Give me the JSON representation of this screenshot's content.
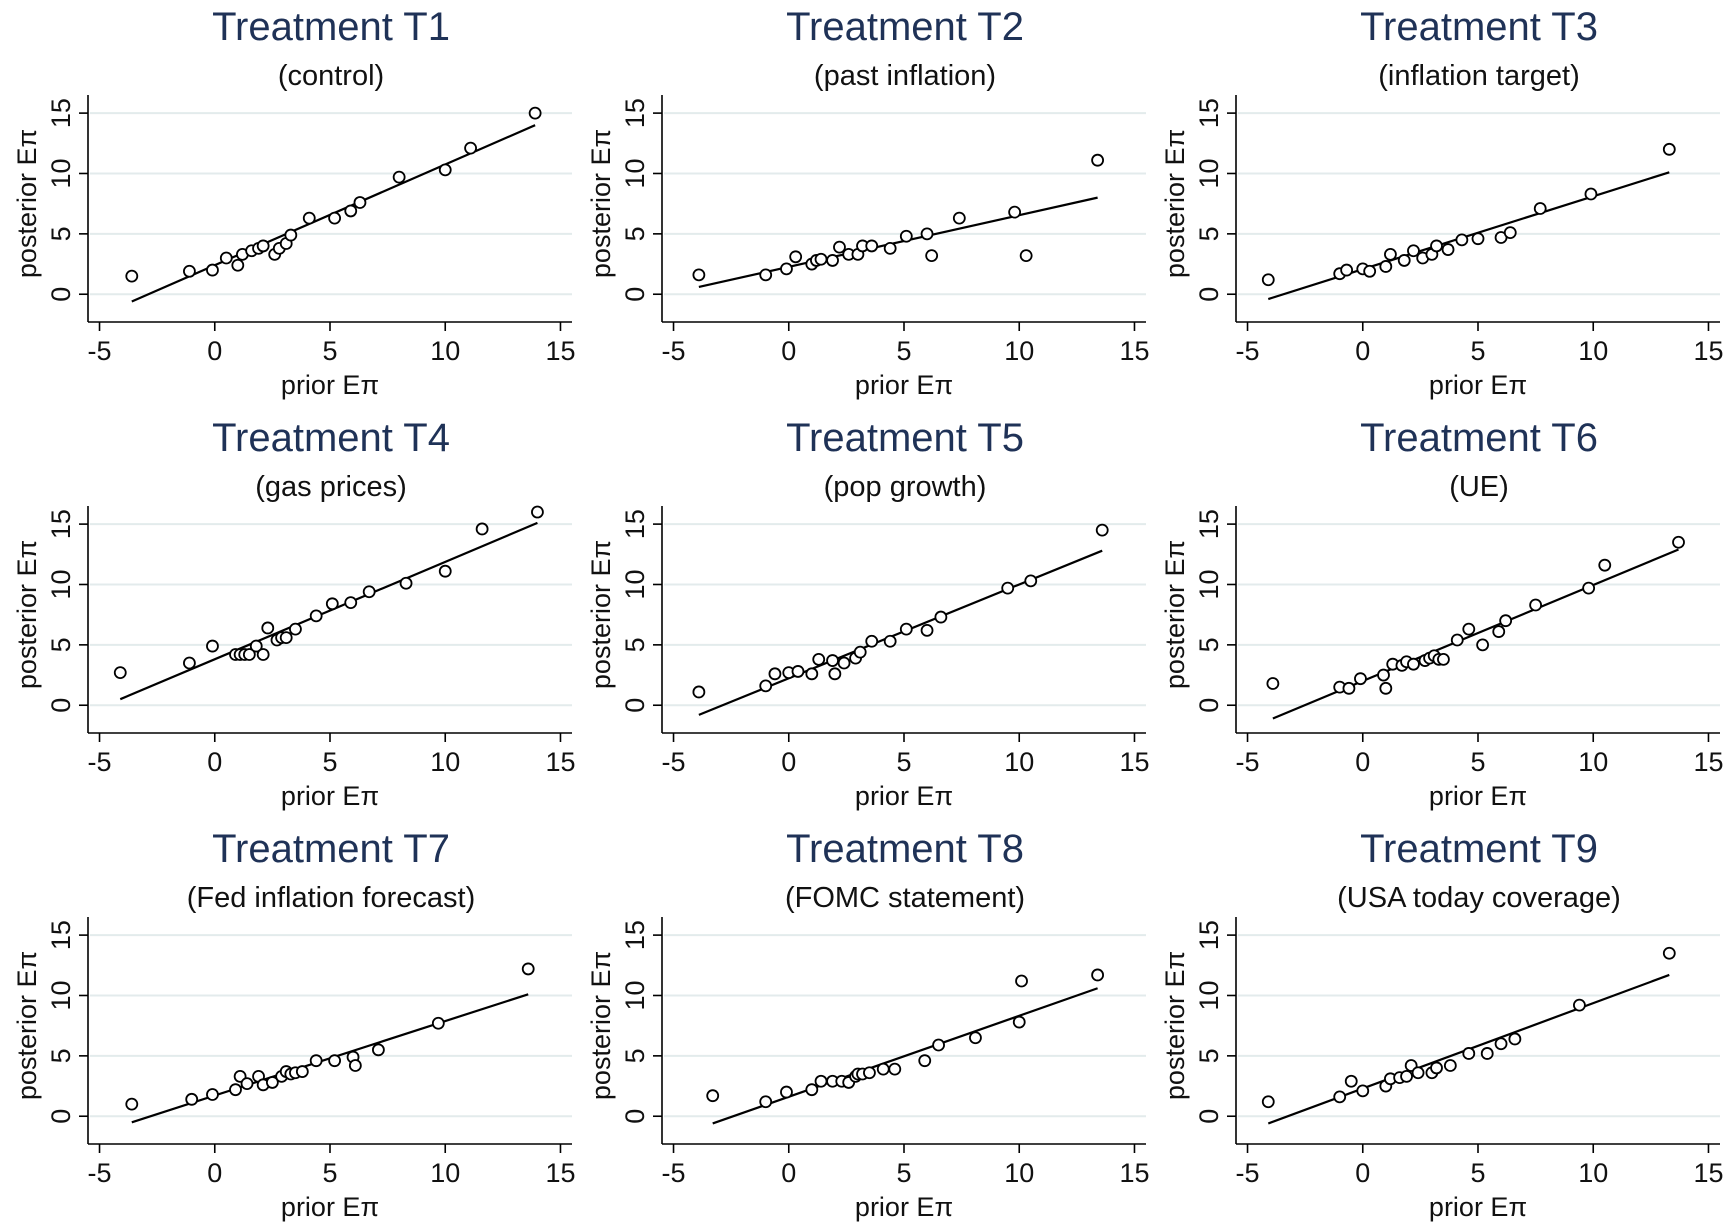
{
  "figure": {
    "xlabel": "prior Eπ",
    "ylabel": "posterior Eπ"
  },
  "chart_data": [
    {
      "type": "scatter",
      "title": "Treatment T1",
      "subtitle": "(control)",
      "xlabel": "prior Eπ",
      "ylabel": "posterior Eπ",
      "xlim": [
        -5.5,
        15.5
      ],
      "ylim": [
        -2.3,
        16.5
      ],
      "xticks": [
        -5,
        0,
        5,
        10,
        15
      ],
      "yticks": [
        0,
        5,
        10,
        15
      ],
      "grid": true,
      "points": [
        [
          -3.6,
          1.5
        ],
        [
          -1.1,
          1.9
        ],
        [
          -0.1,
          2.0
        ],
        [
          0.5,
          3.0
        ],
        [
          1.0,
          2.4
        ],
        [
          1.2,
          3.3
        ],
        [
          1.6,
          3.6
        ],
        [
          1.9,
          3.8
        ],
        [
          2.1,
          4.0
        ],
        [
          2.6,
          3.3
        ],
        [
          2.8,
          3.8
        ],
        [
          3.1,
          4.2
        ],
        [
          3.3,
          4.9
        ],
        [
          4.1,
          6.3
        ],
        [
          5.2,
          6.3
        ],
        [
          5.9,
          6.9
        ],
        [
          6.3,
          7.6
        ],
        [
          8.0,
          9.7
        ],
        [
          10.0,
          10.3
        ],
        [
          11.1,
          12.1
        ],
        [
          13.9,
          15.0
        ]
      ],
      "fit": {
        "x": [
          -3.6,
          13.9
        ],
        "y": [
          -0.6,
          14.0
        ]
      }
    },
    {
      "type": "scatter",
      "title": "Treatment T2",
      "subtitle": "(past inflation)",
      "xlabel": "prior Eπ",
      "ylabel": "posterior Eπ",
      "xlim": [
        -5.5,
        15.5
      ],
      "ylim": [
        -2.3,
        16.5
      ],
      "xticks": [
        -5,
        0,
        5,
        10,
        15
      ],
      "yticks": [
        0,
        5,
        10,
        15
      ],
      "grid": true,
      "points": [
        [
          -3.9,
          1.6
        ],
        [
          -1.0,
          1.6
        ],
        [
          -0.1,
          2.1
        ],
        [
          0.3,
          3.1
        ],
        [
          1.0,
          2.5
        ],
        [
          1.2,
          2.8
        ],
        [
          1.4,
          2.9
        ],
        [
          1.9,
          2.8
        ],
        [
          2.2,
          3.9
        ],
        [
          2.6,
          3.3
        ],
        [
          3.0,
          3.3
        ],
        [
          3.2,
          4.0
        ],
        [
          3.6,
          4.0
        ],
        [
          4.4,
          3.8
        ],
        [
          5.1,
          4.8
        ],
        [
          6.0,
          5.0
        ],
        [
          6.2,
          3.2
        ],
        [
          7.4,
          6.3
        ],
        [
          9.8,
          6.8
        ],
        [
          10.3,
          3.2
        ],
        [
          13.4,
          11.1
        ]
      ],
      "fit": {
        "x": [
          -3.9,
          13.4
        ],
        "y": [
          0.6,
          8.0
        ]
      }
    },
    {
      "type": "scatter",
      "title": "Treatment T3",
      "subtitle": "(inflation target)",
      "xlabel": "prior Eπ",
      "ylabel": "posterior Eπ",
      "xlim": [
        -5.5,
        15.5
      ],
      "ylim": [
        -2.3,
        16.5
      ],
      "xticks": [
        -5,
        0,
        5,
        10,
        15
      ],
      "yticks": [
        0,
        5,
        10,
        15
      ],
      "grid": true,
      "points": [
        [
          -4.1,
          1.2
        ],
        [
          -1.0,
          1.7
        ],
        [
          -0.7,
          2.0
        ],
        [
          0.0,
          2.1
        ],
        [
          0.3,
          1.9
        ],
        [
          1.0,
          2.3
        ],
        [
          1.2,
          3.3
        ],
        [
          1.8,
          2.8
        ],
        [
          2.2,
          3.6
        ],
        [
          2.6,
          3.0
        ],
        [
          3.0,
          3.3
        ],
        [
          3.2,
          4.0
        ],
        [
          3.7,
          3.7
        ],
        [
          4.3,
          4.5
        ],
        [
          5.0,
          4.6
        ],
        [
          6.0,
          4.7
        ],
        [
          6.4,
          5.1
        ],
        [
          7.7,
          7.1
        ],
        [
          9.9,
          8.3
        ],
        [
          13.3,
          12.0
        ]
      ],
      "fit": {
        "x": [
          -4.1,
          13.3
        ],
        "y": [
          -0.4,
          10.1
        ]
      }
    },
    {
      "type": "scatter",
      "title": "Treatment T4",
      "subtitle": "(gas prices)",
      "xlabel": "prior Eπ",
      "ylabel": "posterior Eπ",
      "xlim": [
        -5.5,
        15.5
      ],
      "ylim": [
        -2.3,
        16.5
      ],
      "xticks": [
        -5,
        0,
        5,
        10,
        15
      ],
      "yticks": [
        0,
        5,
        10,
        15
      ],
      "grid": true,
      "points": [
        [
          -4.1,
          2.7
        ],
        [
          -1.1,
          3.5
        ],
        [
          -0.1,
          4.9
        ],
        [
          0.9,
          4.2
        ],
        [
          1.1,
          4.2
        ],
        [
          1.3,
          4.2
        ],
        [
          1.5,
          4.2
        ],
        [
          1.8,
          4.9
        ],
        [
          2.1,
          4.2
        ],
        [
          2.3,
          6.4
        ],
        [
          2.7,
          5.4
        ],
        [
          2.9,
          5.6
        ],
        [
          3.1,
          5.6
        ],
        [
          3.5,
          6.3
        ],
        [
          4.4,
          7.4
        ],
        [
          5.1,
          8.4
        ],
        [
          5.9,
          8.5
        ],
        [
          6.7,
          9.4
        ],
        [
          8.3,
          10.1
        ],
        [
          10.0,
          11.1
        ],
        [
          11.6,
          14.6
        ],
        [
          14.0,
          16.0
        ]
      ],
      "fit": {
        "x": [
          -4.1,
          14.0
        ],
        "y": [
          0.5,
          15.1
        ]
      }
    },
    {
      "type": "scatter",
      "title": "Treatment T5",
      "subtitle": "(pop growth)",
      "xlabel": "prior Eπ",
      "ylabel": "posterior Eπ",
      "xlim": [
        -5.5,
        15.5
      ],
      "ylim": [
        -2.3,
        16.5
      ],
      "xticks": [
        -5,
        0,
        5,
        10,
        15
      ],
      "yticks": [
        0,
        5,
        10,
        15
      ],
      "grid": true,
      "points": [
        [
          -3.9,
          1.1
        ],
        [
          -1.0,
          1.6
        ],
        [
          -0.6,
          2.6
        ],
        [
          0.0,
          2.7
        ],
        [
          0.4,
          2.8
        ],
        [
          1.0,
          2.6
        ],
        [
          1.3,
          3.8
        ],
        [
          1.9,
          3.7
        ],
        [
          2.0,
          2.6
        ],
        [
          2.4,
          3.5
        ],
        [
          2.9,
          3.9
        ],
        [
          3.1,
          4.4
        ],
        [
          3.6,
          5.3
        ],
        [
          4.4,
          5.3
        ],
        [
          5.1,
          6.3
        ],
        [
          6.0,
          6.2
        ],
        [
          6.6,
          7.3
        ],
        [
          9.5,
          9.7
        ],
        [
          10.5,
          10.3
        ],
        [
          13.6,
          14.5
        ]
      ],
      "fit": {
        "x": [
          -3.9,
          13.6
        ],
        "y": [
          -0.8,
          12.8
        ]
      }
    },
    {
      "type": "scatter",
      "title": "Treatment T6",
      "subtitle": "(UE)",
      "xlabel": "prior Eπ",
      "ylabel": "posterior Eπ",
      "xlim": [
        -5.5,
        15.5
      ],
      "ylim": [
        -2.3,
        16.5
      ],
      "xticks": [
        -5,
        0,
        5,
        10,
        15
      ],
      "yticks": [
        0,
        5,
        10,
        15
      ],
      "grid": true,
      "points": [
        [
          -3.9,
          1.8
        ],
        [
          -1.0,
          1.5
        ],
        [
          -0.6,
          1.4
        ],
        [
          -0.1,
          2.2
        ],
        [
          0.9,
          2.5
        ],
        [
          1.0,
          1.4
        ],
        [
          1.3,
          3.4
        ],
        [
          1.7,
          3.3
        ],
        [
          1.9,
          3.6
        ],
        [
          2.2,
          3.4
        ],
        [
          2.7,
          3.7
        ],
        [
          2.9,
          3.9
        ],
        [
          3.1,
          4.1
        ],
        [
          3.3,
          3.8
        ],
        [
          3.5,
          3.8
        ],
        [
          4.1,
          5.4
        ],
        [
          4.6,
          6.3
        ],
        [
          5.2,
          5.0
        ],
        [
          5.9,
          6.1
        ],
        [
          6.2,
          7.0
        ],
        [
          7.5,
          8.3
        ],
        [
          9.8,
          9.7
        ],
        [
          10.5,
          11.6
        ],
        [
          13.7,
          13.5
        ]
      ],
      "fit": {
        "x": [
          -3.9,
          13.7
        ],
        "y": [
          -1.1,
          12.9
        ]
      }
    },
    {
      "type": "scatter",
      "title": "Treatment T7",
      "subtitle": "(Fed inflation forecast)",
      "xlabel": "prior Eπ",
      "ylabel": "posterior Eπ",
      "xlim": [
        -5.5,
        15.5
      ],
      "ylim": [
        -2.3,
        16.5
      ],
      "xticks": [
        -5,
        0,
        5,
        10,
        15
      ],
      "yticks": [
        0,
        5,
        10,
        15
      ],
      "grid": true,
      "points": [
        [
          -3.6,
          1.0
        ],
        [
          -1.0,
          1.4
        ],
        [
          -0.1,
          1.8
        ],
        [
          0.9,
          2.2
        ],
        [
          1.1,
          3.3
        ],
        [
          1.4,
          2.7
        ],
        [
          1.9,
          3.3
        ],
        [
          2.1,
          2.6
        ],
        [
          2.5,
          2.8
        ],
        [
          2.9,
          3.3
        ],
        [
          3.1,
          3.7
        ],
        [
          3.3,
          3.5
        ],
        [
          3.5,
          3.6
        ],
        [
          3.8,
          3.7
        ],
        [
          4.4,
          4.6
        ],
        [
          5.2,
          4.6
        ],
        [
          6.0,
          4.9
        ],
        [
          6.1,
          4.2
        ],
        [
          7.1,
          5.5
        ],
        [
          9.7,
          7.7
        ],
        [
          13.6,
          12.2
        ]
      ],
      "fit": {
        "x": [
          -3.6,
          13.6
        ],
        "y": [
          -0.5,
          10.1
        ]
      }
    },
    {
      "type": "scatter",
      "title": "Treatment T8",
      "subtitle": "(FOMC statement)",
      "xlabel": "prior Eπ",
      "ylabel": "posterior Eπ",
      "xlim": [
        -5.5,
        15.5
      ],
      "ylim": [
        -2.3,
        16.5
      ],
      "xticks": [
        -5,
        0,
        5,
        10,
        15
      ],
      "yticks": [
        0,
        5,
        10,
        15
      ],
      "grid": true,
      "points": [
        [
          -3.3,
          1.7
        ],
        [
          -1.0,
          1.2
        ],
        [
          -0.1,
          2.0
        ],
        [
          1.0,
          2.2
        ],
        [
          1.4,
          2.9
        ],
        [
          1.9,
          2.9
        ],
        [
          2.3,
          2.9
        ],
        [
          2.6,
          2.8
        ],
        [
          2.9,
          3.3
        ],
        [
          3.0,
          3.5
        ],
        [
          3.2,
          3.5
        ],
        [
          3.5,
          3.6
        ],
        [
          4.1,
          3.9
        ],
        [
          4.6,
          3.9
        ],
        [
          5.9,
          4.6
        ],
        [
          6.5,
          5.9
        ],
        [
          8.1,
          6.5
        ],
        [
          10.0,
          7.8
        ],
        [
          10.1,
          11.2
        ],
        [
          13.4,
          11.7
        ]
      ],
      "fit": {
        "x": [
          -3.3,
          13.4
        ],
        "y": [
          -0.6,
          10.6
        ]
      }
    },
    {
      "type": "scatter",
      "title": "Treatment T9",
      "subtitle": "(USA today coverage)",
      "xlabel": "prior Eπ",
      "ylabel": "posterior Eπ",
      "xlim": [
        -5.5,
        15.5
      ],
      "ylim": [
        -2.3,
        16.5
      ],
      "xticks": [
        -5,
        0,
        5,
        10,
        15
      ],
      "yticks": [
        0,
        5,
        10,
        15
      ],
      "grid": true,
      "points": [
        [
          -4.1,
          1.2
        ],
        [
          -1.0,
          1.6
        ],
        [
          -0.5,
          2.9
        ],
        [
          0.0,
          2.1
        ],
        [
          1.0,
          2.5
        ],
        [
          1.2,
          3.1
        ],
        [
          1.6,
          3.2
        ],
        [
          1.9,
          3.3
        ],
        [
          2.1,
          4.2
        ],
        [
          2.4,
          3.6
        ],
        [
          3.0,
          3.6
        ],
        [
          3.2,
          4.0
        ],
        [
          3.8,
          4.2
        ],
        [
          4.6,
          5.2
        ],
        [
          5.4,
          5.2
        ],
        [
          6.0,
          6.0
        ],
        [
          6.6,
          6.4
        ],
        [
          9.4,
          9.2
        ],
        [
          13.3,
          13.5
        ]
      ],
      "fit": {
        "x": [
          -4.1,
          13.3
        ],
        "y": [
          -0.6,
          11.7
        ]
      }
    }
  ]
}
